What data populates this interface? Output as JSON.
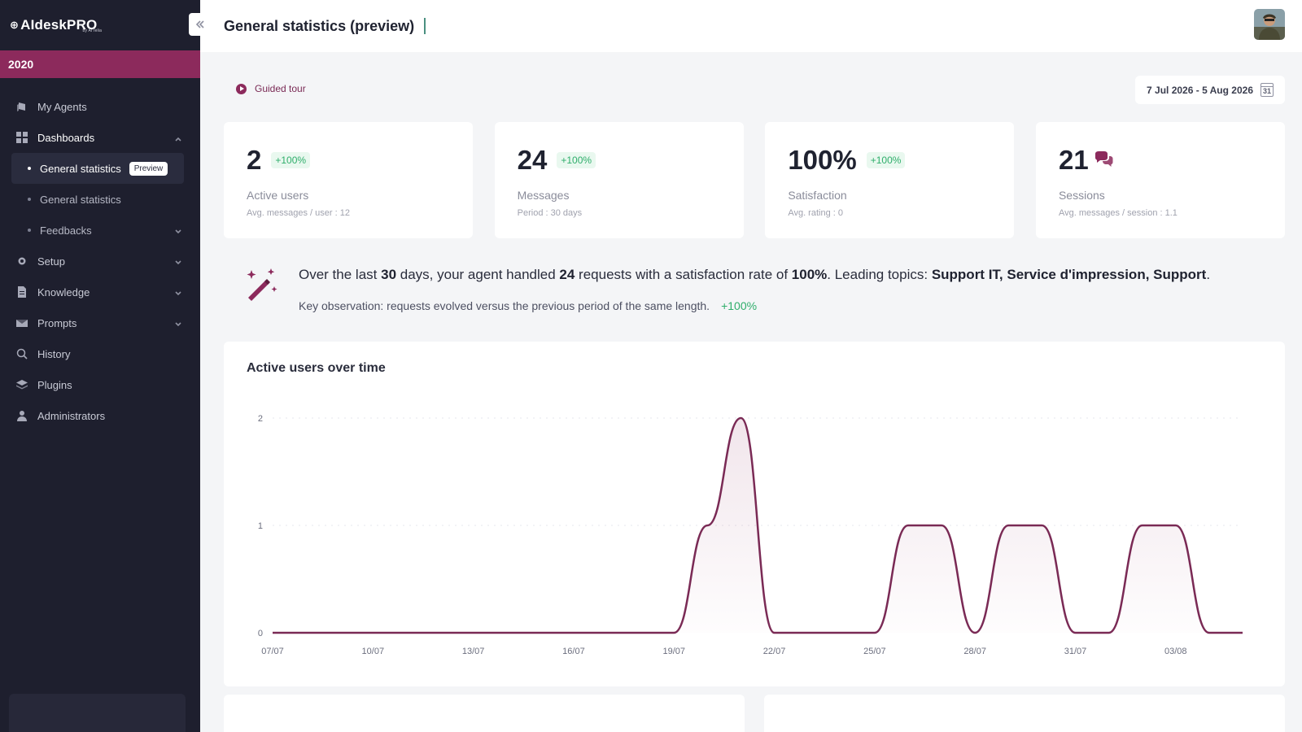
{
  "brand": {
    "name": "AIdeskPRO",
    "tagline": "by ArTelia"
  },
  "org": {
    "label": "2020"
  },
  "sidebar": {
    "items": [
      {
        "label": "My Agents",
        "icon": "agents-icon"
      },
      {
        "label": "Dashboards",
        "icon": "dashboard-icon",
        "expanded": true
      },
      {
        "label": "Setup",
        "icon": "gear-icon"
      },
      {
        "label": "Knowledge",
        "icon": "document-icon"
      },
      {
        "label": "Prompts",
        "icon": "mail-icon"
      },
      {
        "label": "History",
        "icon": "search-icon"
      },
      {
        "label": "Plugins",
        "icon": "layers-icon"
      },
      {
        "label": "Administrators",
        "icon": "user-icon"
      }
    ],
    "dashboards_sub": [
      {
        "label": "General statistics",
        "badge": "Preview",
        "active": true
      },
      {
        "label": "General statistics"
      },
      {
        "label": "Feedbacks"
      }
    ]
  },
  "header": {
    "title": "General statistics (preview)"
  },
  "toolbar": {
    "guided_tour": "Guided tour",
    "date_range": "7 Jul 2026 - 5 Aug 2026",
    "calendar_day": "31"
  },
  "kpis": [
    {
      "value": "2",
      "delta": "+100%",
      "label": "Active users",
      "sub": "Avg. messages / user : 12"
    },
    {
      "value": "24",
      "delta": "+100%",
      "label": "Messages",
      "sub": "Period : 30 days"
    },
    {
      "value": "100%",
      "delta": "+100%",
      "label": "Satisfaction",
      "sub": "Avg. rating : 0"
    },
    {
      "value": "21",
      "label": "Sessions",
      "sub": "Avg. messages / session : 1.1"
    }
  ],
  "insight": {
    "part1": "Over the last ",
    "days": "30",
    "part2": " days, your agent handled ",
    "requests": "24",
    "part3": " requests with a satisfaction rate of ",
    "rate": "100%",
    "part4": ". Leading topics: ",
    "topics": "Support IT, Service d'impression, Support",
    "part5": ".",
    "observation": "Key observation: requests evolved versus the previous period of the same length.",
    "delta": "+100%"
  },
  "colors": {
    "brand": "#8c2a5c",
    "sidebar_bg": "#1e1f2e",
    "positive": "#2fae6b",
    "line": "#7a2a55"
  },
  "chart_data": {
    "type": "line",
    "title": "Active users over time",
    "xlabel": "",
    "ylabel": "",
    "ylim": [
      0,
      2
    ],
    "yticks": [
      "0",
      "1",
      "2"
    ],
    "x_tick_labels": [
      "07/07",
      "10/07",
      "13/07",
      "16/07",
      "19/07",
      "22/07",
      "25/07",
      "28/07",
      "31/07",
      "03/08"
    ],
    "x": [
      "07/07",
      "08/07",
      "09/07",
      "10/07",
      "11/07",
      "12/07",
      "13/07",
      "14/07",
      "15/07",
      "16/07",
      "17/07",
      "18/07",
      "19/07",
      "20/07",
      "21/07",
      "22/07",
      "23/07",
      "24/07",
      "25/07",
      "26/07",
      "27/07",
      "28/07",
      "29/07",
      "30/07",
      "31/07",
      "01/08",
      "02/08",
      "03/08",
      "04/08",
      "05/08"
    ],
    "series": [
      {
        "values": [
          0,
          0,
          0,
          0,
          0,
          0,
          0,
          0,
          0,
          0,
          0,
          0,
          0,
          1,
          2,
          0,
          0,
          0,
          0,
          1,
          1,
          0,
          1,
          1,
          0,
          0,
          1,
          1,
          0,
          0
        ]
      }
    ],
    "grid": true
  }
}
